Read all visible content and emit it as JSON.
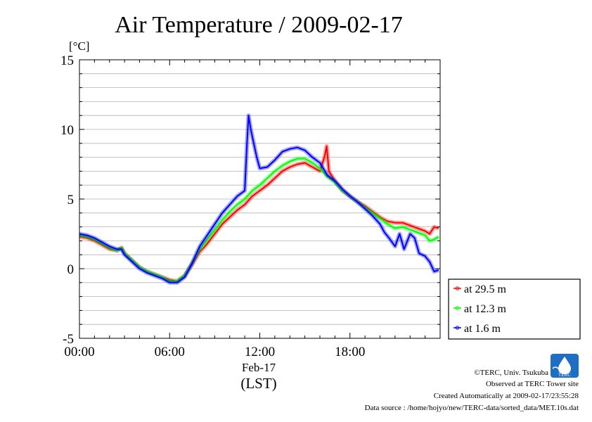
{
  "chart_data": {
    "type": "line",
    "title": "Air Temperature / 2009-02-17",
    "ylabel": "[°C]",
    "xlabel": "(LST)",
    "date_label": "Feb-17",
    "ylim": [
      -5,
      15
    ],
    "xlim_hours": [
      0,
      24
    ],
    "yticks": [
      {
        "value": -5,
        "label": "-5"
      },
      {
        "value": 0,
        "label": "0"
      },
      {
        "value": 5,
        "label": "5"
      },
      {
        "value": 10,
        "label": "10"
      },
      {
        "value": 15,
        "label": "15"
      }
    ],
    "xticks": [
      {
        "value": 0,
        "label": "00:00"
      },
      {
        "value": 6,
        "label": "06:00"
      },
      {
        "value": 12,
        "label": "12:00"
      },
      {
        "value": 18,
        "label": "18:00"
      }
    ],
    "grid": true,
    "legend_position": "bottom-right-outside",
    "series": [
      {
        "name": "at 29.5 m",
        "color": "#ff0000",
        "points": [
          [
            0,
            2.3
          ],
          [
            0.5,
            2.2
          ],
          [
            1,
            2.0
          ],
          [
            1.5,
            1.7
          ],
          [
            2,
            1.4
          ],
          [
            2.5,
            1.3
          ],
          [
            2.8,
            1.5
          ],
          [
            3,
            1.1
          ],
          [
            3.5,
            0.6
          ],
          [
            4,
            0.1
          ],
          [
            4.5,
            -0.2
          ],
          [
            5,
            -0.4
          ],
          [
            5.5,
            -0.6
          ],
          [
            6,
            -0.8
          ],
          [
            6.5,
            -0.9
          ],
          [
            7,
            -0.5
          ],
          [
            7.5,
            0.3
          ],
          [
            8,
            1.2
          ],
          [
            8.5,
            1.8
          ],
          [
            9,
            2.5
          ],
          [
            9.5,
            3.2
          ],
          [
            10,
            3.7
          ],
          [
            10.5,
            4.2
          ],
          [
            11,
            4.6
          ],
          [
            11.5,
            5.2
          ],
          [
            12,
            5.6
          ],
          [
            12.5,
            6.0
          ],
          [
            13,
            6.5
          ],
          [
            13.5,
            7.0
          ],
          [
            14,
            7.3
          ],
          [
            14.5,
            7.5
          ],
          [
            15,
            7.6
          ],
          [
            15.5,
            7.3
          ],
          [
            16,
            7.0
          ],
          [
            16.3,
            8.0
          ],
          [
            16.45,
            8.8
          ],
          [
            16.6,
            7.0
          ],
          [
            17,
            6.3
          ],
          [
            17.5,
            5.6
          ],
          [
            18,
            5.2
          ],
          [
            18.5,
            4.8
          ],
          [
            19,
            4.5
          ],
          [
            19.5,
            4.1
          ],
          [
            20,
            3.7
          ],
          [
            20.5,
            3.4
          ],
          [
            21,
            3.3
          ],
          [
            21.5,
            3.3
          ],
          [
            22,
            3.1
          ],
          [
            22.5,
            2.9
          ],
          [
            23,
            2.7
          ],
          [
            23.3,
            2.5
          ],
          [
            23.6,
            3.0
          ],
          [
            23.9,
            2.9
          ]
        ]
      },
      {
        "name": "at 12.3 m",
        "color": "#00ff00",
        "points": [
          [
            0,
            2.4
          ],
          [
            0.5,
            2.3
          ],
          [
            1,
            2.1
          ],
          [
            1.5,
            1.8
          ],
          [
            2,
            1.5
          ],
          [
            2.5,
            1.3
          ],
          [
            2.8,
            1.5
          ],
          [
            3,
            1.1
          ],
          [
            3.5,
            0.6
          ],
          [
            4,
            0.1
          ],
          [
            4.5,
            -0.2
          ],
          [
            5,
            -0.4
          ],
          [
            5.5,
            -0.6
          ],
          [
            6,
            -0.9
          ],
          [
            6.5,
            -0.9
          ],
          [
            7,
            -0.5
          ],
          [
            7.5,
            0.4
          ],
          [
            8,
            1.4
          ],
          [
            8.5,
            2.1
          ],
          [
            9,
            2.8
          ],
          [
            9.5,
            3.5
          ],
          [
            10,
            4.1
          ],
          [
            10.5,
            4.6
          ],
          [
            11,
            5.0
          ],
          [
            11.5,
            5.6
          ],
          [
            12,
            6.0
          ],
          [
            12.5,
            6.5
          ],
          [
            13,
            7.0
          ],
          [
            13.5,
            7.4
          ],
          [
            14,
            7.7
          ],
          [
            14.5,
            7.9
          ],
          [
            15,
            7.9
          ],
          [
            15.5,
            7.6
          ],
          [
            16,
            7.2
          ],
          [
            16.5,
            6.6
          ],
          [
            17,
            6.2
          ],
          [
            17.5,
            5.6
          ],
          [
            18,
            5.2
          ],
          [
            18.5,
            4.8
          ],
          [
            19,
            4.4
          ],
          [
            19.5,
            4.0
          ],
          [
            20,
            3.6
          ],
          [
            20.5,
            3.2
          ],
          [
            21,
            2.9
          ],
          [
            21.5,
            3.0
          ],
          [
            22,
            2.8
          ],
          [
            22.5,
            2.6
          ],
          [
            23,
            2.4
          ],
          [
            23.3,
            2.0
          ],
          [
            23.6,
            2.1
          ],
          [
            23.9,
            2.3
          ]
        ]
      },
      {
        "name": "at 1.6 m",
        "color": "#0000ff",
        "points": [
          [
            0,
            2.5
          ],
          [
            0.5,
            2.4
          ],
          [
            1,
            2.2
          ],
          [
            1.5,
            1.9
          ],
          [
            2,
            1.6
          ],
          [
            2.5,
            1.4
          ],
          [
            2.8,
            1.4
          ],
          [
            3,
            1.0
          ],
          [
            3.5,
            0.5
          ],
          [
            4,
            0.0
          ],
          [
            4.5,
            -0.3
          ],
          [
            5,
            -0.5
          ],
          [
            5.5,
            -0.7
          ],
          [
            6,
            -1.0
          ],
          [
            6.5,
            -1.0
          ],
          [
            7,
            -0.6
          ],
          [
            7.5,
            0.4
          ],
          [
            8,
            1.6
          ],
          [
            8.5,
            2.4
          ],
          [
            9,
            3.2
          ],
          [
            9.5,
            4.0
          ],
          [
            10,
            4.6
          ],
          [
            10.5,
            5.2
          ],
          [
            11,
            5.6
          ],
          [
            11.15,
            9.0
          ],
          [
            11.25,
            11.0
          ],
          [
            11.4,
            10.0
          ],
          [
            11.6,
            9.0
          ],
          [
            11.8,
            8.0
          ],
          [
            12,
            7.2
          ],
          [
            12.5,
            7.3
          ],
          [
            13,
            7.8
          ],
          [
            13.5,
            8.4
          ],
          [
            14,
            8.6
          ],
          [
            14.5,
            8.7
          ],
          [
            15,
            8.5
          ],
          [
            15.5,
            8.0
          ],
          [
            16,
            7.6
          ],
          [
            16.5,
            6.7
          ],
          [
            17,
            6.3
          ],
          [
            17.5,
            5.7
          ],
          [
            18,
            5.2
          ],
          [
            18.5,
            4.8
          ],
          [
            19,
            4.3
          ],
          [
            19.5,
            3.8
          ],
          [
            20,
            3.2
          ],
          [
            20.3,
            2.6
          ],
          [
            20.6,
            2.2
          ],
          [
            21,
            1.6
          ],
          [
            21.3,
            2.5
          ],
          [
            21.6,
            1.4
          ],
          [
            22,
            2.5
          ],
          [
            22.3,
            2.2
          ],
          [
            22.6,
            1.1
          ],
          [
            23,
            0.9
          ],
          [
            23.3,
            0.5
          ],
          [
            23.6,
            -0.2
          ],
          [
            23.9,
            -0.1
          ]
        ]
      }
    ],
    "credits": {
      "copyright": "©TERC, Univ. Tsukuba",
      "observed": "Observed at TERC Tower site",
      "created": "Created Automatically at 2009-02-17/23:55:28",
      "source": "Data source : /home/hojyo/new/TERC-data/sorted_data/MET.10s.dat"
    },
    "logo_text": "TERC"
  }
}
